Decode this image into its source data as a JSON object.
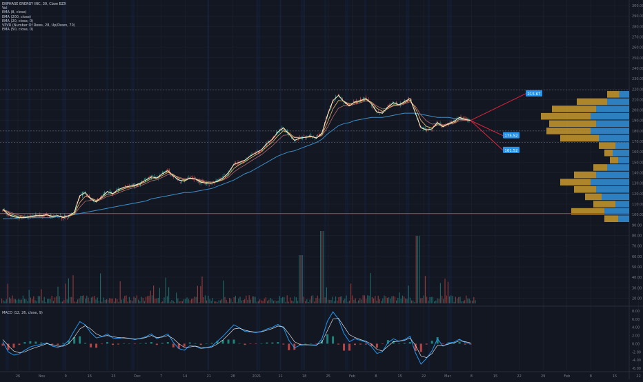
{
  "legend": {
    "title": "ENPHASE ENERGY INC, 30, Cboe BZX",
    "lines": [
      "Vol",
      "EMA (8, close)",
      "EMA (200, close)",
      "EMA (20, close, 0)",
      "VPVR (Number Of Rows, 28, Up/Down, 70)",
      "EMA (50, close, 0)"
    ]
  },
  "macd_legend": "MACD (12, 26, close, 9)",
  "colors": {
    "background": "#131722",
    "grid": "#1f2330",
    "candle_up": "#26a69a",
    "candle_down": "#ef5350",
    "ema8": "#f5e9c0",
    "ema20": "#d8b26a",
    "ema50": "#b86a6a",
    "ema200": "#3c8fc8",
    "vp_up": "#2d7fc0",
    "vp_down": "#c99a2e",
    "support_line": "#e0243d",
    "target_arrow": "#e0243d",
    "label_blue": "#2196f3",
    "label_red": "#c2185b",
    "macd_line": "#2196f3",
    "signal_line": "#ffffff"
  },
  "chart_data": [
    {
      "type": "line",
      "name": "price",
      "x": [
        0,
        8,
        16,
        24,
        32,
        40,
        48,
        56,
        64,
        72,
        80,
        88,
        96,
        104,
        112,
        120,
        128,
        136,
        144,
        152,
        160,
        168,
        176,
        184,
        192,
        200,
        208,
        216,
        224,
        232,
        240,
        248,
        256,
        264,
        272,
        280,
        288,
        296,
        304,
        312,
        320,
        328,
        336,
        344,
        352,
        360,
        368,
        376,
        384,
        392,
        400,
        408,
        416,
        424,
        432,
        440,
        448,
        456,
        464,
        472,
        480,
        488,
        496,
        504,
        512,
        520,
        528,
        536,
        544,
        552,
        560,
        568,
        576,
        584,
        592,
        600,
        608,
        616,
        624,
        632,
        640,
        648,
        656,
        664,
        672,
        680
      ],
      "close": [
        105,
        100,
        98,
        97,
        97,
        98,
        99,
        99,
        100,
        98,
        99,
        97,
        99,
        102,
        118,
        121,
        115,
        112,
        117,
        122,
        120,
        124,
        126,
        127,
        128,
        130,
        133,
        136,
        135,
        139,
        142,
        137,
        133,
        132,
        135,
        134,
        131,
        130,
        130,
        132,
        135,
        140,
        148,
        150,
        152,
        156,
        159,
        162,
        168,
        172,
        179,
        183,
        177,
        171,
        173,
        174,
        175,
        173,
        178,
        195,
        209,
        214,
        208,
        204,
        208,
        209,
        211,
        206,
        198,
        197,
        203,
        207,
        205,
        208,
        211,
        197,
        183,
        181,
        182,
        188,
        184,
        187,
        189,
        193,
        191,
        190
      ],
      "ema200": [
        96,
        96,
        96,
        97,
        97,
        97,
        97,
        97,
        97,
        97,
        98,
        98,
        99,
        100,
        101,
        102,
        103,
        104,
        105,
        106,
        107,
        108,
        109,
        110,
        111,
        112,
        113,
        115,
        116,
        117,
        118,
        119,
        120,
        121,
        121,
        122,
        123,
        124,
        125,
        127,
        129,
        131,
        133,
        136,
        139,
        141,
        144,
        147,
        150,
        153,
        156,
        158,
        160,
        161,
        163,
        165,
        167,
        169,
        172,
        177,
        181,
        185,
        187,
        188,
        190,
        191,
        192,
        193,
        193,
        193,
        194,
        195,
        196,
        197,
        197,
        197,
        196,
        195,
        194,
        193,
        193,
        193,
        192,
        192,
        191,
        190
      ],
      "ylim": [
        15,
        300
      ],
      "y_ticks": [
        20,
        30,
        40,
        50,
        60,
        70,
        80,
        90,
        100,
        110,
        120,
        130,
        140,
        150,
        160,
        170,
        180,
        190,
        200,
        210,
        220,
        230,
        240,
        250,
        260,
        270,
        280,
        290,
        300
      ],
      "x_tick_labels": [
        "26",
        "Nov",
        "9",
        "16",
        "23",
        "Dec",
        "7",
        "14",
        "21",
        "28",
        "2021",
        "11",
        "18",
        "25",
        "Feb",
        "8",
        "15",
        "22",
        "Mar",
        "8",
        "15",
        "22",
        "29",
        "Feb",
        "8",
        "15",
        "22"
      ],
      "projections": [
        {
          "label": "215.67",
          "value": 215.67
        },
        {
          "label": "175.52",
          "value": 175.52
        },
        {
          "label": "161.52",
          "value": 161.52
        }
      ],
      "support_level": 101
    },
    {
      "type": "bar",
      "name": "volume-profile",
      "rows": [
        {
          "price": 215,
          "up": 18,
          "down": 22
        },
        {
          "price": 208,
          "up": 40,
          "down": 55
        },
        {
          "price": 201,
          "up": 60,
          "down": 80
        },
        {
          "price": 194,
          "up": 70,
          "down": 90
        },
        {
          "price": 187,
          "up": 60,
          "down": 85
        },
        {
          "price": 180,
          "up": 70,
          "down": 80
        },
        {
          "price": 173,
          "up": 55,
          "down": 70
        },
        {
          "price": 166,
          "up": 25,
          "down": 30
        },
        {
          "price": 159,
          "up": 30,
          "down": 15
        },
        {
          "price": 152,
          "up": 20,
          "down": 15
        },
        {
          "price": 145,
          "up": 40,
          "down": 25
        },
        {
          "price": 138,
          "up": 60,
          "down": 40
        },
        {
          "price": 131,
          "up": 70,
          "down": 55
        },
        {
          "price": 124,
          "up": 60,
          "down": 40
        },
        {
          "price": 117,
          "up": 50,
          "down": 30
        },
        {
          "price": 110,
          "up": 25,
          "down": 40
        },
        {
          "price": 103,
          "up": 45,
          "down": 60
        },
        {
          "price": 96,
          "up": 20,
          "down": 25
        }
      ]
    },
    {
      "type": "area",
      "name": "MACD (12, 26, close, 9)",
      "macd": [
        0.5,
        -2,
        -2.8,
        -2.5,
        -1.6,
        -0.8,
        -0.4,
        -0.2,
        0.2,
        -0.6,
        -0.9,
        -0.4,
        0.8,
        3.2,
        5.4,
        4.6,
        2.7,
        1.4,
        1.7,
        2.4,
        1.4,
        1.3,
        1.5,
        1.3,
        1.0,
        1.3,
        1.7,
        2.4,
        1.2,
        1.8,
        2.4,
        0.3,
        -1.2,
        -1.6,
        -0.5,
        -0.6,
        -1.2,
        -1.0,
        -0.6,
        0.6,
        1.8,
        3.2,
        4.6,
        3.9,
        3.0,
        2.9,
        2.7,
        3.0,
        3.6,
        4.0,
        4.7,
        3.9,
        0.8,
        -1.0,
        -0.4,
        -0.2,
        -0.3,
        -0.4,
        1.2,
        5.5,
        7.8,
        6.0,
        2.5,
        0.5,
        1.2,
        0.8,
        0.4,
        -0.7,
        -2.4,
        -1.9,
        0.3,
        1.2,
        0.6,
        1.0,
        1.8,
        -2.2,
        -5.0,
        -3.6,
        -1.7,
        1.2,
        -0.6,
        0.2,
        0.4,
        1.1,
        0.3,
        0.0
      ],
      "signal": [
        1.0,
        -0.5,
        -1.8,
        -2.2,
        -2.0,
        -1.4,
        -0.9,
        -0.5,
        0.0,
        -0.3,
        -0.6,
        -0.6,
        0.0,
        1.6,
        3.6,
        4.4,
        3.6,
        2.4,
        1.8,
        2.0,
        1.7,
        1.5,
        1.4,
        1.3,
        1.1,
        1.2,
        1.5,
        2.0,
        1.5,
        1.6,
        2.0,
        1.2,
        0.0,
        -0.9,
        -0.8,
        -0.6,
        -0.9,
        -1.0,
        -0.8,
        -0.1,
        0.9,
        2.2,
        3.6,
        3.8,
        3.3,
        3.0,
        2.8,
        2.9,
        3.3,
        3.7,
        4.3,
        4.1,
        2.4,
        0.5,
        -0.2,
        -0.3,
        -0.3,
        -0.3,
        0.4,
        3.2,
        6.0,
        6.2,
        4.2,
        2.2,
        1.5,
        1.0,
        0.6,
        -0.1,
        -1.4,
        -1.8,
        -0.6,
        0.5,
        0.6,
        0.8,
        1.4,
        -0.4,
        -3.0,
        -3.4,
        -2.4,
        -0.4,
        -0.5,
        -0.1,
        0.2,
        0.7,
        0.5,
        0.2
      ],
      "ylim": [
        -6.5,
        8.5
      ],
      "y_ticks": [
        -6,
        -4,
        -2,
        0,
        2,
        4,
        6,
        8
      ]
    }
  ]
}
